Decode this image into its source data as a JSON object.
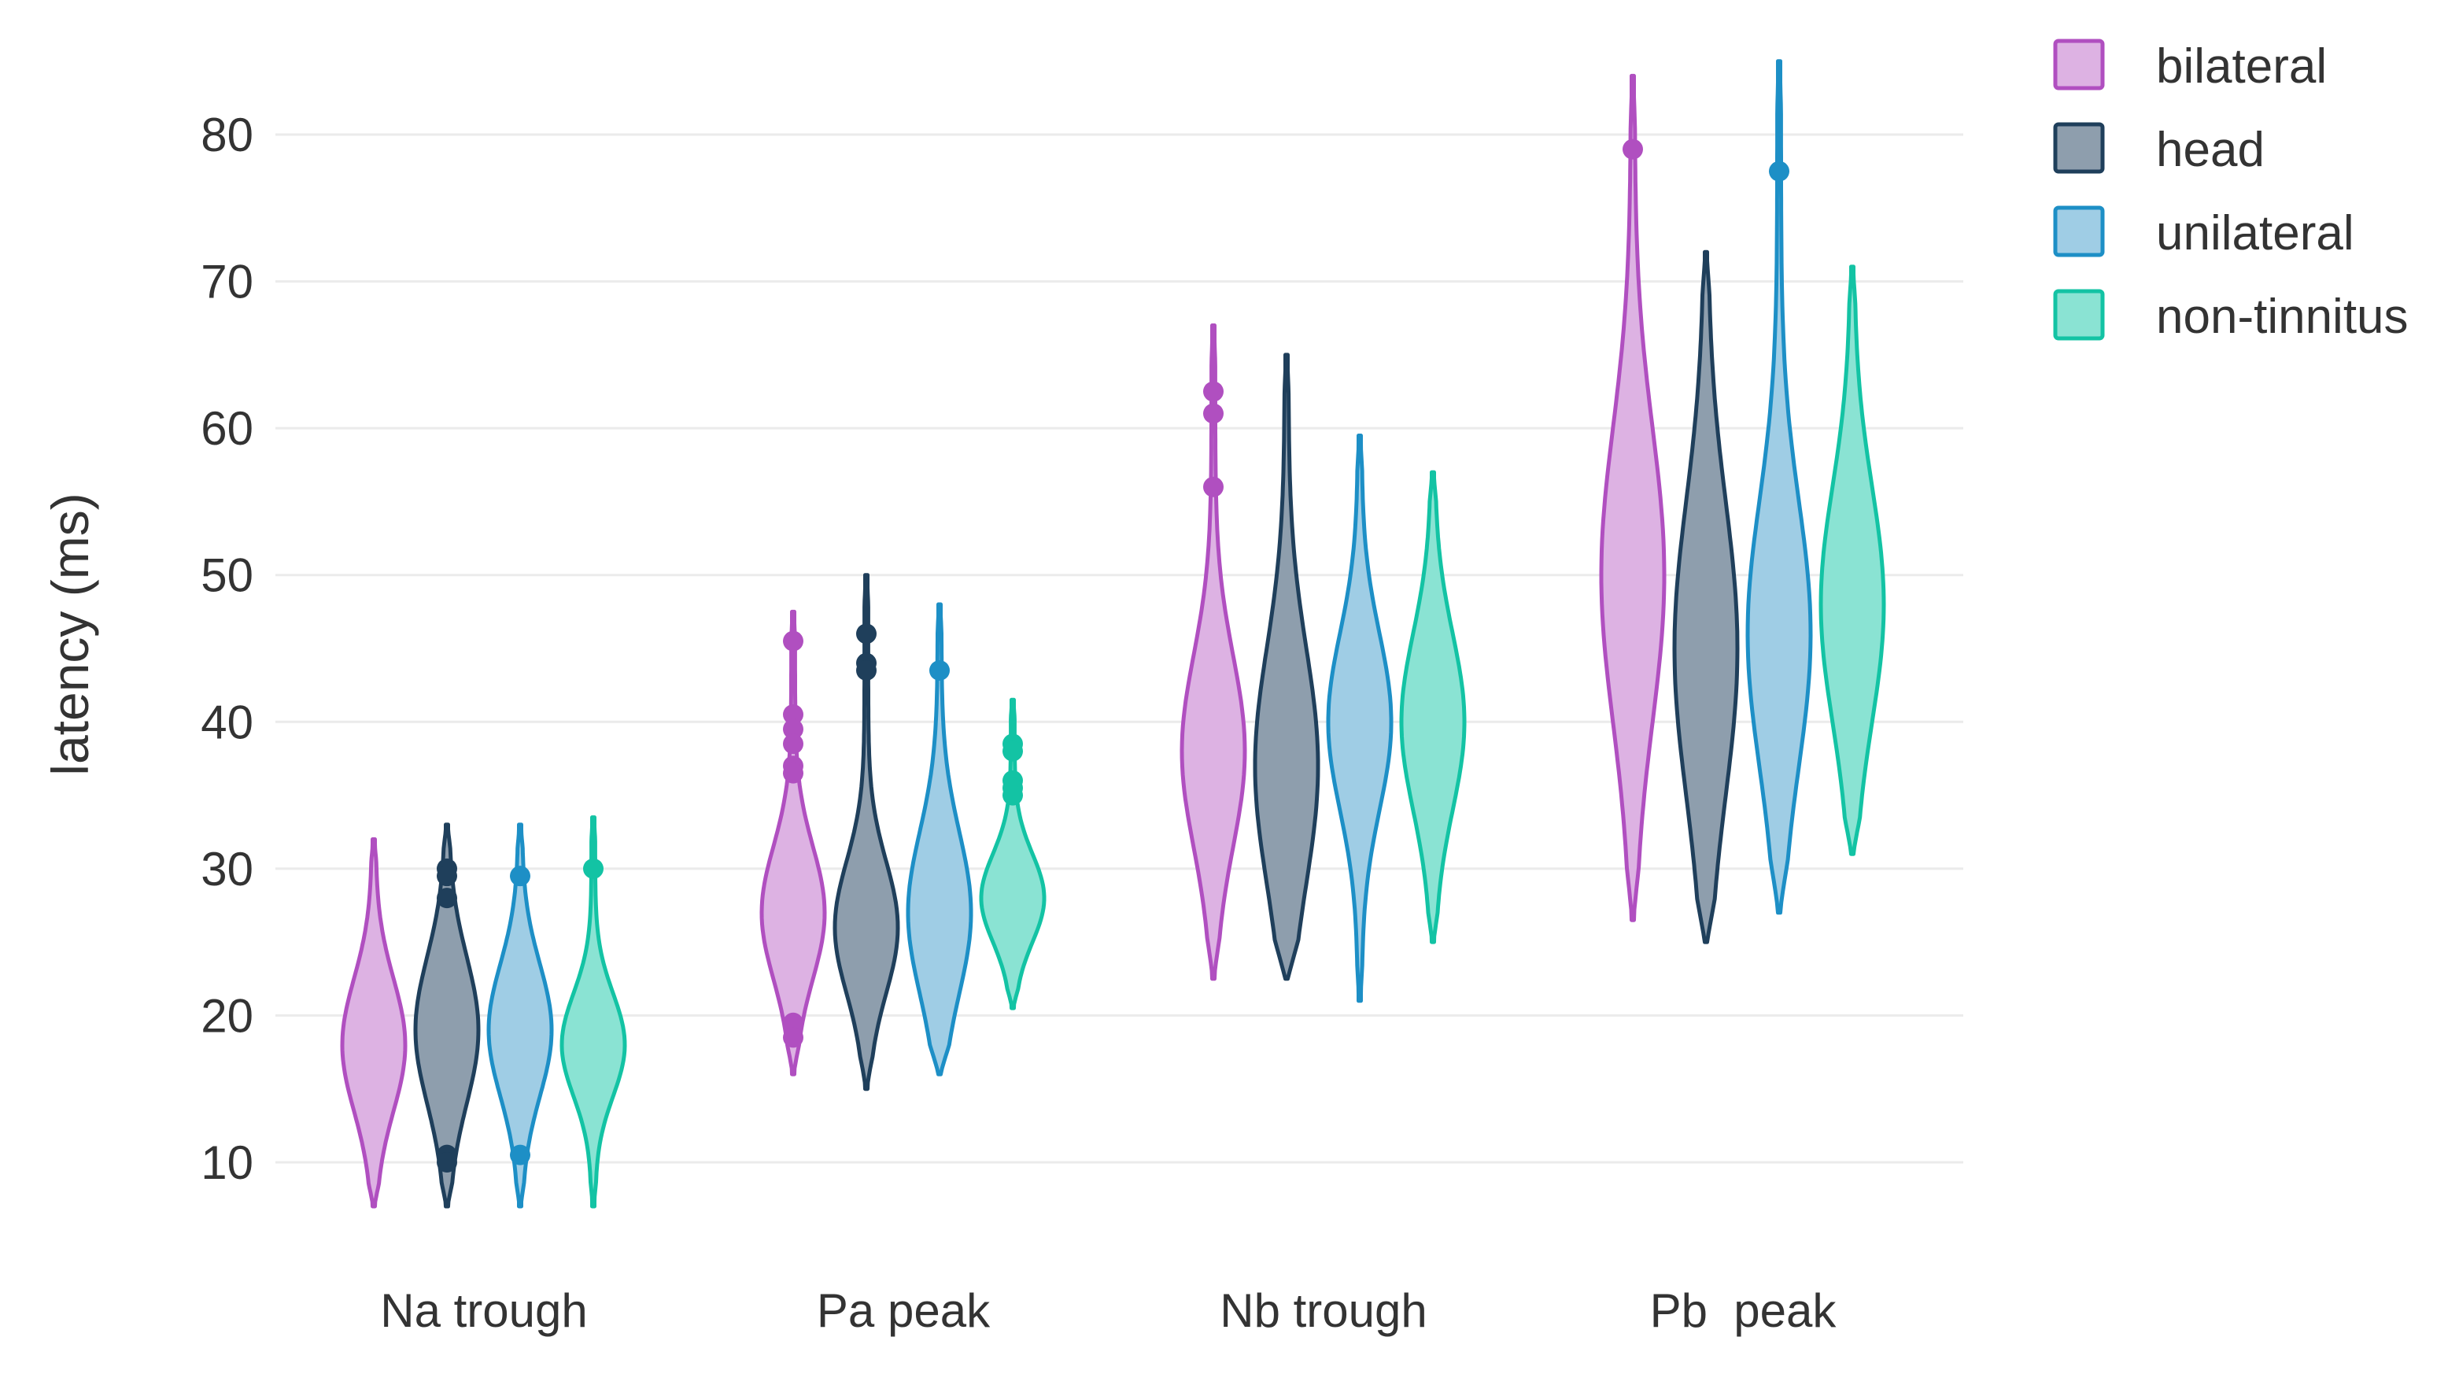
{
  "chart_data": {
    "type": "violin",
    "title": "",
    "xlabel": "",
    "ylabel": "latency (ms)",
    "ylim": [
      5,
      88
    ],
    "yticks": [
      10,
      20,
      30,
      40,
      50,
      60,
      70,
      80
    ],
    "ytick_labels": [
      "10",
      "20",
      "30",
      "40",
      "50",
      "60",
      "70",
      "80"
    ],
    "grid": true,
    "legend_position": "top-right",
    "categories": [
      "Na trough",
      "Pa peak",
      "Nb trough",
      "Pb  peak"
    ],
    "series": [
      {
        "name": "bilateral",
        "color": "#b04fc0",
        "fill": "#ddb2e3",
        "groups": [
          {
            "min": 7,
            "max": 32,
            "center": 18,
            "spread": 4.5,
            "outliers": []
          },
          {
            "min": 16,
            "max": 47.5,
            "center": 27,
            "spread": 4.5,
            "outliers": [
              45.5,
              40.5,
              39.5,
              38.5,
              37,
              36.5,
              19.5,
              18.5
            ]
          },
          {
            "min": 22.5,
            "max": 67,
            "center": 38,
            "spread": 6.5,
            "outliers": [
              62.5,
              61,
              56
            ]
          },
          {
            "min": 26.5,
            "max": 84,
            "center": 50,
            "spread": 10,
            "outliers": [
              79
            ]
          }
        ]
      },
      {
        "name": "head",
        "color": "#1f3f5b",
        "fill": "#8e9ead",
        "groups": [
          {
            "min": 7,
            "max": 33,
            "center": 19,
            "spread": 5,
            "outliers": [
              30,
              29.5,
              28,
              10.5,
              10
            ]
          },
          {
            "min": 15,
            "max": 50,
            "center": 26,
            "spread": 4.5,
            "outliers": [
              46,
              44,
              43.5
            ]
          },
          {
            "min": 22.5,
            "max": 65,
            "center": 37,
            "spread": 8,
            "outliers": []
          },
          {
            "min": 25,
            "max": 72,
            "center": 45,
            "spread": 10,
            "outliers": []
          }
        ]
      },
      {
        "name": "unilateral",
        "color": "#1d8fc6",
        "fill": "#9fcde5",
        "groups": [
          {
            "min": 7,
            "max": 33,
            "center": 19,
            "spread": 4.5,
            "outliers": [
              29.5,
              10.5
            ]
          },
          {
            "min": 16,
            "max": 48,
            "center": 27,
            "spread": 5.5,
            "outliers": [
              43.5
            ]
          },
          {
            "min": 21,
            "max": 59.5,
            "center": 40,
            "spread": 6,
            "outliers": []
          },
          {
            "min": 27,
            "max": 85,
            "center": 46,
            "spread": 9,
            "outliers": [
              77.5
            ]
          }
        ]
      },
      {
        "name": "non-tinnitus",
        "color": "#13c3a4",
        "fill": "#8ae3d3",
        "groups": [
          {
            "min": 7,
            "max": 33.5,
            "center": 18,
            "spread": 3.5,
            "outliers": [
              30
            ]
          },
          {
            "min": 20.5,
            "max": 41.5,
            "center": 28,
            "spread": 3,
            "outliers": [
              38.5,
              38,
              36,
              35.5,
              35
            ]
          },
          {
            "min": 25,
            "max": 57,
            "center": 40,
            "spread": 6,
            "outliers": []
          },
          {
            "min": 31,
            "max": 71,
            "center": 48,
            "spread": 8,
            "outliers": []
          }
        ]
      }
    ]
  }
}
